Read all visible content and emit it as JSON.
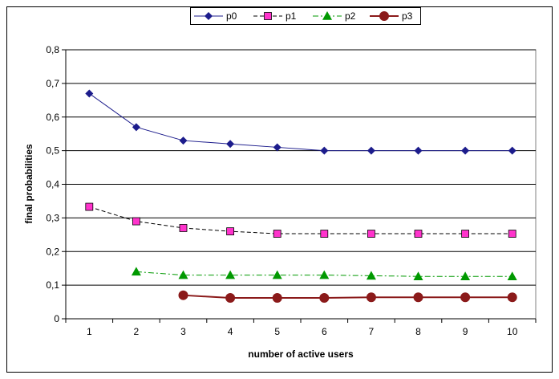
{
  "chart_data": {
    "type": "line",
    "title": "",
    "xlabel": "number of active users",
    "ylabel": "final probabilities",
    "x": [
      1,
      2,
      3,
      4,
      5,
      6,
      7,
      8,
      9,
      10
    ],
    "x_tick_labels": [
      "1",
      "2",
      "3",
      "4",
      "5",
      "6",
      "7",
      "8",
      "9",
      "10"
    ],
    "ylim": [
      0,
      0.8
    ],
    "y_ticks": [
      0,
      0.1,
      0.2,
      0.3,
      0.4,
      0.5,
      0.6,
      0.7,
      0.8
    ],
    "y_tick_labels": [
      "0",
      "0,1",
      "0,2",
      "0,3",
      "0,4",
      "0,5",
      "0,6",
      "0,7",
      "0,8"
    ],
    "grid": "horizontal",
    "legend_position": "top",
    "series": [
      {
        "name": "p0",
        "color": "#1c1c8c",
        "marker": "diamond",
        "line_style": "solid",
        "x": [
          1,
          2,
          3,
          4,
          5,
          6,
          7,
          8,
          9,
          10
        ],
        "values": [
          0.67,
          0.57,
          0.53,
          0.52,
          0.51,
          0.5,
          0.5,
          0.5,
          0.5,
          0.5
        ]
      },
      {
        "name": "p1",
        "color": "#ff33cc",
        "marker": "square",
        "line_style": "dashed",
        "x": [
          1,
          2,
          3,
          4,
          5,
          6,
          7,
          8,
          9,
          10
        ],
        "values": [
          0.333,
          0.29,
          0.27,
          0.26,
          0.253,
          0.253,
          0.253,
          0.253,
          0.253,
          0.253
        ]
      },
      {
        "name": "p2",
        "color": "#009900",
        "marker": "triangle",
        "line_style": "dashdot",
        "x": [
          2,
          3,
          4,
          5,
          6,
          7,
          8,
          9,
          10
        ],
        "values": [
          0.14,
          0.13,
          0.13,
          0.13,
          0.13,
          0.128,
          0.126,
          0.126,
          0.126
        ]
      },
      {
        "name": "p3",
        "color": "#8b1a1a",
        "marker": "circle",
        "line_style": "solid",
        "x": [
          3,
          4,
          5,
          6,
          7,
          8,
          9,
          10
        ],
        "values": [
          0.07,
          0.062,
          0.062,
          0.062,
          0.064,
          0.064,
          0.064,
          0.064
        ]
      }
    ]
  }
}
